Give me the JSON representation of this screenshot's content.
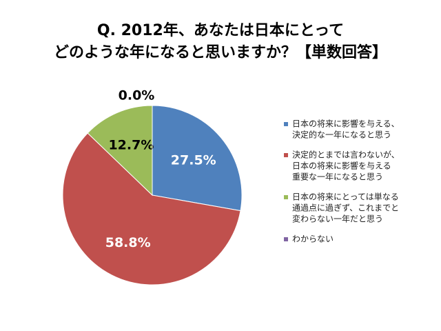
{
  "chart_data": {
    "type": "pie",
    "title": [
      "Q. 2012年、あなたは日本にとって",
      "どのような年になると思いますか？【単数回答】"
    ],
    "categories": [
      [
        "日本の将来に影響を与える、",
        "決定的な一年になると思う"
      ],
      [
        "決定的とまでは言わないが、",
        "日本の将来に影響を与える",
        "重要な一年になると思う"
      ],
      [
        "日本の将来にとっては単なる",
        "通過点に過ぎず、これまでと",
        "変わらない一年だと思う"
      ],
      [
        "わからない"
      ]
    ],
    "values": [
      27.5,
      58.8,
      12.7,
      0.0
    ],
    "value_labels": [
      "27.5%",
      "58.8%",
      "12.7%",
      "0.0%"
    ],
    "colors": [
      "#4f81bd",
      "#c0504d",
      "#9bbb59",
      "#8064a2"
    ],
    "value_label_colors": [
      "#ffffff",
      "#ffffff",
      "#000000",
      "#000000"
    ],
    "legend": "right"
  }
}
